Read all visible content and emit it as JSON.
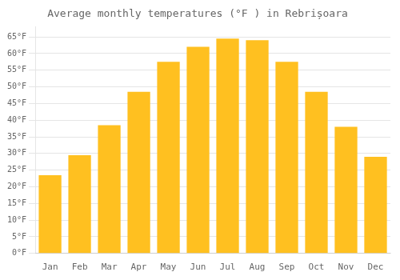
{
  "chart_data": {
    "type": "bar",
    "title": "Average monthly temperatures (°F ) in Rebrișoara",
    "categories": [
      "Jan",
      "Feb",
      "Mar",
      "Apr",
      "May",
      "Jun",
      "Jul",
      "Aug",
      "Sep",
      "Oct",
      "Nov",
      "Dec"
    ],
    "values": [
      23.5,
      29.5,
      38.5,
      48.5,
      57.5,
      62.0,
      64.5,
      64.0,
      57.5,
      48.5,
      38.0,
      29.0
    ],
    "color": "#FFC020",
    "ylim": [
      0,
      68
    ],
    "yticks": [
      {
        "value": 0,
        "label": "0°F"
      },
      {
        "value": 5,
        "label": "5°F"
      },
      {
        "value": 10,
        "label": "10°F"
      },
      {
        "value": 15,
        "label": "15°F"
      },
      {
        "value": 20,
        "label": "20°F"
      },
      {
        "value": 25,
        "label": "25°F"
      },
      {
        "value": 30,
        "label": "30°F"
      },
      {
        "value": 35,
        "label": "35°F"
      },
      {
        "value": 40,
        "label": "40°F"
      },
      {
        "value": 45,
        "label": "45°F"
      },
      {
        "value": 50,
        "label": "50°F"
      },
      {
        "value": 55,
        "label": "55°F"
      },
      {
        "value": 60,
        "label": "60°F"
      },
      {
        "value": 65,
        "label": "65°F"
      }
    ],
    "grid": true
  }
}
